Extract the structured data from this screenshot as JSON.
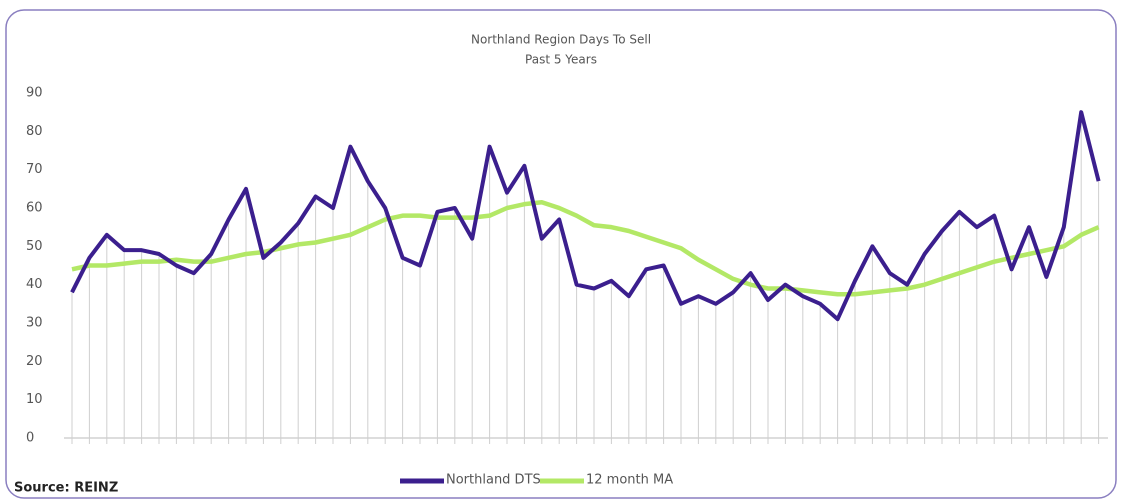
{
  "chart_data": {
    "type": "line",
    "title": "Northland Region Days To Sell",
    "subtitle": "Past 5 Years",
    "source": "Source: REINZ",
    "categories": [
      null,
      null,
      null,
      null,
      null,
      null,
      null,
      null,
      null,
      null,
      null,
      null,
      null,
      null,
      null,
      null,
      null,
      null,
      null,
      null,
      null,
      null,
      null,
      null,
      null,
      null,
      null,
      null,
      null,
      null,
      null,
      null,
      null,
      null,
      null,
      null,
      null,
      null,
      null,
      null,
      null,
      null,
      null,
      null,
      null,
      null,
      null,
      null,
      null,
      null,
      null,
      null,
      null,
      null,
      null,
      null,
      null,
      null,
      null,
      null
    ],
    "series": [
      {
        "name": "Northland DTS",
        "color": "#3b1f8e",
        "values": [
          38,
          47,
          53,
          49,
          49,
          48,
          45,
          43,
          48,
          57,
          65,
          47,
          51,
          56,
          63,
          60,
          76,
          67,
          60,
          47,
          45,
          59,
          60,
          52,
          76,
          64,
          71,
          52,
          57,
          40,
          39,
          41,
          37,
          44,
          45,
          35,
          37,
          35,
          38,
          43,
          36,
          40,
          37,
          35,
          31,
          41,
          50,
          43,
          40,
          48,
          54,
          59,
          55,
          58,
          44,
          55,
          42,
          55,
          85,
          67
        ]
      },
      {
        "name": "12 month MA",
        "color": "#b3e866",
        "values": [
          44,
          45,
          45,
          45.5,
          46,
          46,
          46.5,
          46,
          46,
          47,
          48,
          48.5,
          49.5,
          50.5,
          51,
          52,
          53,
          55,
          57,
          58,
          58,
          57.5,
          57.5,
          57.5,
          58,
          60,
          61,
          61.5,
          60,
          58,
          55.5,
          55,
          54,
          52.5,
          51,
          49.5,
          46.5,
          44,
          41.5,
          40,
          39,
          39,
          38.5,
          38,
          37.5,
          37.5,
          38,
          38.5,
          39,
          40,
          41.5,
          43,
          44.5,
          46,
          47,
          48,
          49,
          50,
          53,
          55
        ]
      }
    ],
    "ylim": [
      0,
      90
    ],
    "yticks": [
      0,
      10,
      20,
      30,
      40,
      50,
      60,
      70,
      80,
      90
    ],
    "grid": false
  }
}
